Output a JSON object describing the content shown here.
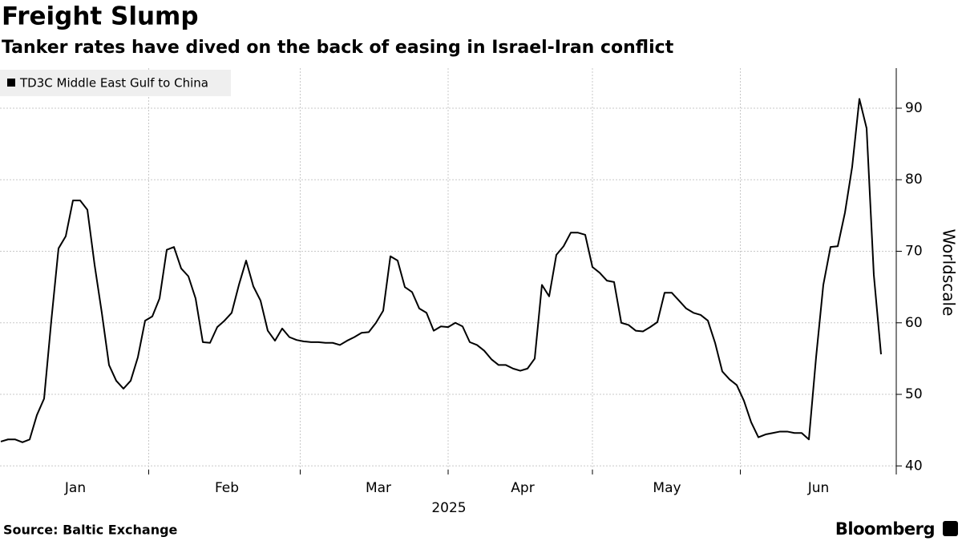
{
  "chart_data": {
    "type": "line",
    "title": "Freight Slump",
    "subtitle": "Tanker rates have dived on the back of easing in Israel-Iran conflict",
    "source": "Source: Baltic Exchange",
    "brand": "Bloomberg",
    "xlabel": "2025",
    "ylabel": "Worldscale",
    "categories": [
      null,
      null,
      null,
      null,
      null,
      null,
      null,
      null,
      null,
      null,
      "Jan",
      null,
      null,
      null,
      null,
      null,
      null,
      null,
      null,
      null,
      null,
      null,
      null,
      null,
      null,
      null,
      null,
      null,
      null,
      null,
      null,
      "Feb",
      null,
      null,
      null,
      null,
      null,
      null,
      null,
      null,
      null,
      null,
      null,
      null,
      null,
      null,
      null,
      null,
      null,
      null,
      null,
      null,
      "Mar",
      null,
      null,
      null,
      null,
      null,
      null,
      null,
      null,
      null,
      null,
      null,
      null,
      null,
      null,
      null,
      null,
      null,
      null,
      null,
      "Apr",
      null,
      null,
      null,
      null,
      null,
      null,
      null,
      null,
      null,
      null,
      null,
      null,
      null,
      null,
      null,
      null,
      null,
      null,
      null,
      "May",
      null,
      null,
      null,
      null,
      null,
      null,
      null,
      null,
      null,
      null,
      null,
      null,
      null,
      null,
      null,
      null,
      null,
      null,
      null,
      null,
      "Jun",
      null,
      null,
      null,
      null,
      null,
      null,
      null,
      null,
      null
    ],
    "series": [
      {
        "name": "TD3C Middle East Gulf to China",
        "color": "#000000",
        "values": [
          43.4,
          43.7,
          43.7,
          43.3,
          43.7,
          47.1,
          49.4,
          60.3,
          70.4,
          72.1,
          77.1,
          77.1,
          75.8,
          68.1,
          61.4,
          54.1,
          51.9,
          50.8,
          51.9,
          55.2,
          60.3,
          60.9,
          63.4,
          70.2,
          70.6,
          67.6,
          66.5,
          63.4,
          57.3,
          57.2,
          59.4,
          60.3,
          61.4,
          65.3,
          68.7,
          65.1,
          63.1,
          58.9,
          57.5,
          59.2,
          58.0,
          57.6,
          57.4,
          57.3,
          57.3,
          57.2,
          57.2,
          56.9,
          57.5,
          58.0,
          58.6,
          58.7,
          60.0,
          61.7,
          69.3,
          68.7,
          65.0,
          64.3,
          62.0,
          61.4,
          58.9,
          59.5,
          59.4,
          60.0,
          59.5,
          57.3,
          56.9,
          56.1,
          54.9,
          54.1,
          54.1,
          53.6,
          53.3,
          53.6,
          55.0,
          65.3,
          63.7,
          69.5,
          70.7,
          72.6,
          72.6,
          72.3,
          67.8,
          67.0,
          65.9,
          65.7,
          60.0,
          59.7,
          58.9,
          58.8,
          59.4,
          60.1,
          64.2,
          64.2,
          63.1,
          62.0,
          61.4,
          61.1,
          60.3,
          57.2,
          53.2,
          52.1,
          51.3,
          49.1,
          46.1,
          44.0,
          44.4,
          44.6,
          44.8,
          44.8,
          44.6,
          44.6,
          43.7,
          55.2,
          65.3,
          70.6,
          70.7,
          75.4,
          81.8,
          91.3,
          87.2,
          66.7,
          55.6
        ]
      }
    ],
    "ylim": [
      38.8,
      95.6
    ],
    "yticks": [
      40,
      50,
      60,
      70,
      80,
      90
    ],
    "grid": true,
    "legend": "top-left"
  }
}
